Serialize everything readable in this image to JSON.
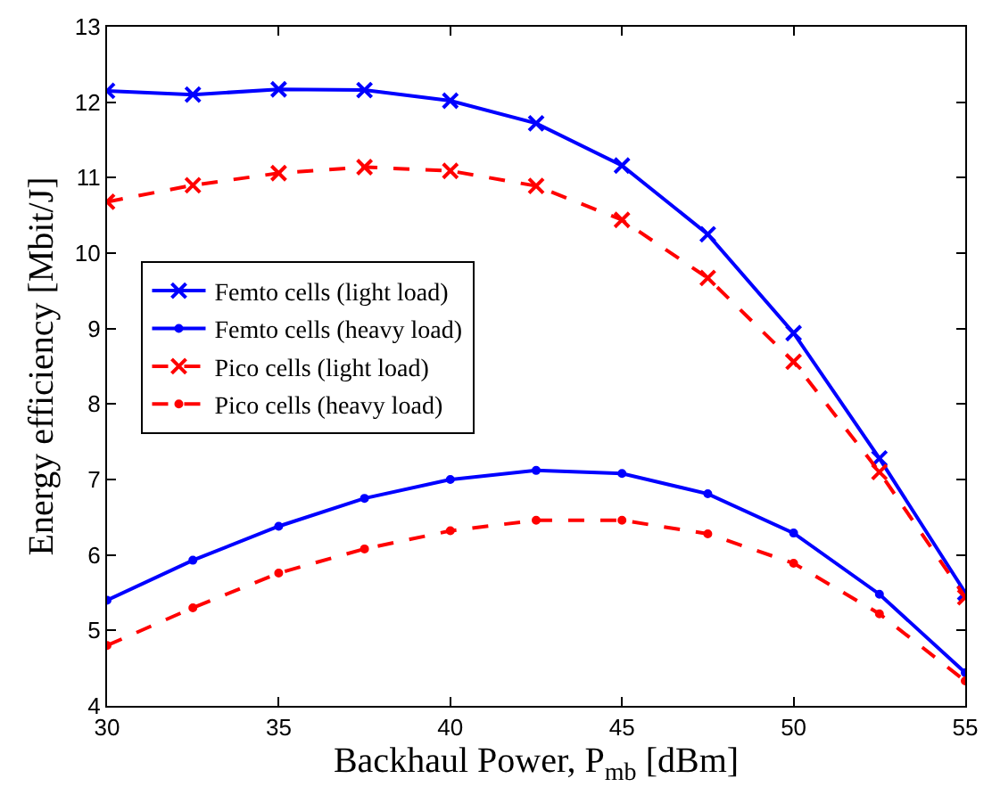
{
  "chart_data": {
    "type": "line",
    "xlabel": "Backhaul Power, P$_{mb}$ [dBm]",
    "ylabel": "Energy efficiency [Mbit/J]",
    "x": [
      30,
      32.5,
      35,
      37.5,
      40,
      42.5,
      45,
      47.5,
      50,
      52.5,
      55
    ],
    "series": [
      {
        "name": "Femto cells (light load)",
        "color": "#0000ff",
        "marker": "cross",
        "line_style": "solid",
        "values": [
          12.15,
          12.1,
          12.17,
          12.16,
          12.02,
          11.72,
          11.16,
          10.25,
          8.94,
          7.28,
          5.5
        ]
      },
      {
        "name": "Femto cells (heavy load)",
        "color": "#0000ff",
        "marker": "circle",
        "line_style": "solid",
        "values": [
          5.4,
          5.93,
          6.38,
          6.75,
          7.0,
          7.12,
          7.08,
          6.81,
          6.29,
          5.48,
          4.44
        ]
      },
      {
        "name": "Pico cells (light load)",
        "color": "#ff0000",
        "marker": "cross",
        "line_style": "dashed",
        "values": [
          10.68,
          10.9,
          11.06,
          11.14,
          11.09,
          10.89,
          10.44,
          9.67,
          8.56,
          7.1,
          5.44
        ]
      },
      {
        "name": "Pico cells (heavy load)",
        "color": "#ff0000",
        "marker": "circle",
        "line_style": "dashed",
        "values": [
          4.8,
          5.3,
          5.76,
          6.08,
          6.32,
          6.46,
          6.46,
          6.28,
          5.89,
          5.22,
          4.33
        ]
      }
    ],
    "xlim": [
      30,
      55
    ],
    "xticks": [
      30,
      35,
      40,
      45,
      50,
      55
    ],
    "ylim": [
      4,
      13
    ],
    "yticks": [
      4,
      5,
      6,
      7,
      8,
      9,
      10,
      11,
      12,
      13
    ],
    "grid": false,
    "legend": "left"
  }
}
